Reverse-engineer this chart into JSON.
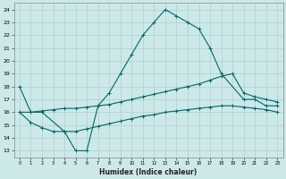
{
  "xlabel": "Humidex (Indice chaleur)",
  "xlim": [
    -0.5,
    23.5
  ],
  "ylim": [
    12.5,
    24.5
  ],
  "yticks": [
    13,
    14,
    15,
    16,
    17,
    18,
    19,
    20,
    21,
    22,
    23,
    24
  ],
  "xticks": [
    0,
    1,
    2,
    3,
    4,
    5,
    6,
    7,
    8,
    9,
    10,
    11,
    12,
    13,
    14,
    15,
    16,
    17,
    18,
    19,
    20,
    21,
    22,
    23
  ],
  "bg_color": "#cde8e8",
  "grid_color": "#aad0d0",
  "line_color": "#006868",
  "curve1_x": [
    0,
    1,
    2,
    4,
    5,
    6,
    7,
    8,
    9,
    10,
    11,
    12,
    13,
    14,
    15,
    16,
    17,
    18,
    20,
    21,
    22,
    23
  ],
  "curve1_y": [
    18,
    16,
    16,
    14.5,
    13,
    13,
    16.5,
    17.5,
    19,
    20.5,
    22,
    23,
    24,
    23.5,
    23,
    22.5,
    21,
    19,
    17,
    17,
    16.5,
    16.5
  ],
  "curve2_x": [
    0,
    1,
    2,
    3,
    4,
    5,
    6,
    7,
    8,
    9,
    10,
    11,
    12,
    13,
    14,
    15,
    16,
    17,
    18,
    19,
    20,
    21,
    22,
    23
  ],
  "curve2_y": [
    16,
    16,
    16.1,
    16.2,
    16.3,
    16.3,
    16.4,
    16.5,
    16.6,
    16.8,
    17.0,
    17.2,
    17.4,
    17.6,
    17.8,
    18.0,
    18.2,
    18.5,
    18.8,
    19.0,
    17.5,
    17.2,
    17.0,
    16.8
  ],
  "curve3_x": [
    0,
    1,
    2,
    3,
    4,
    5,
    6,
    7,
    8,
    9,
    10,
    11,
    12,
    13,
    14,
    15,
    16,
    17,
    18,
    19,
    20,
    21,
    22,
    23
  ],
  "curve3_y": [
    16,
    15.2,
    14.8,
    14.5,
    14.5,
    14.5,
    14.7,
    14.9,
    15.1,
    15.3,
    15.5,
    15.7,
    15.8,
    16.0,
    16.1,
    16.2,
    16.3,
    16.4,
    16.5,
    16.5,
    16.4,
    16.3,
    16.2,
    16.0
  ]
}
